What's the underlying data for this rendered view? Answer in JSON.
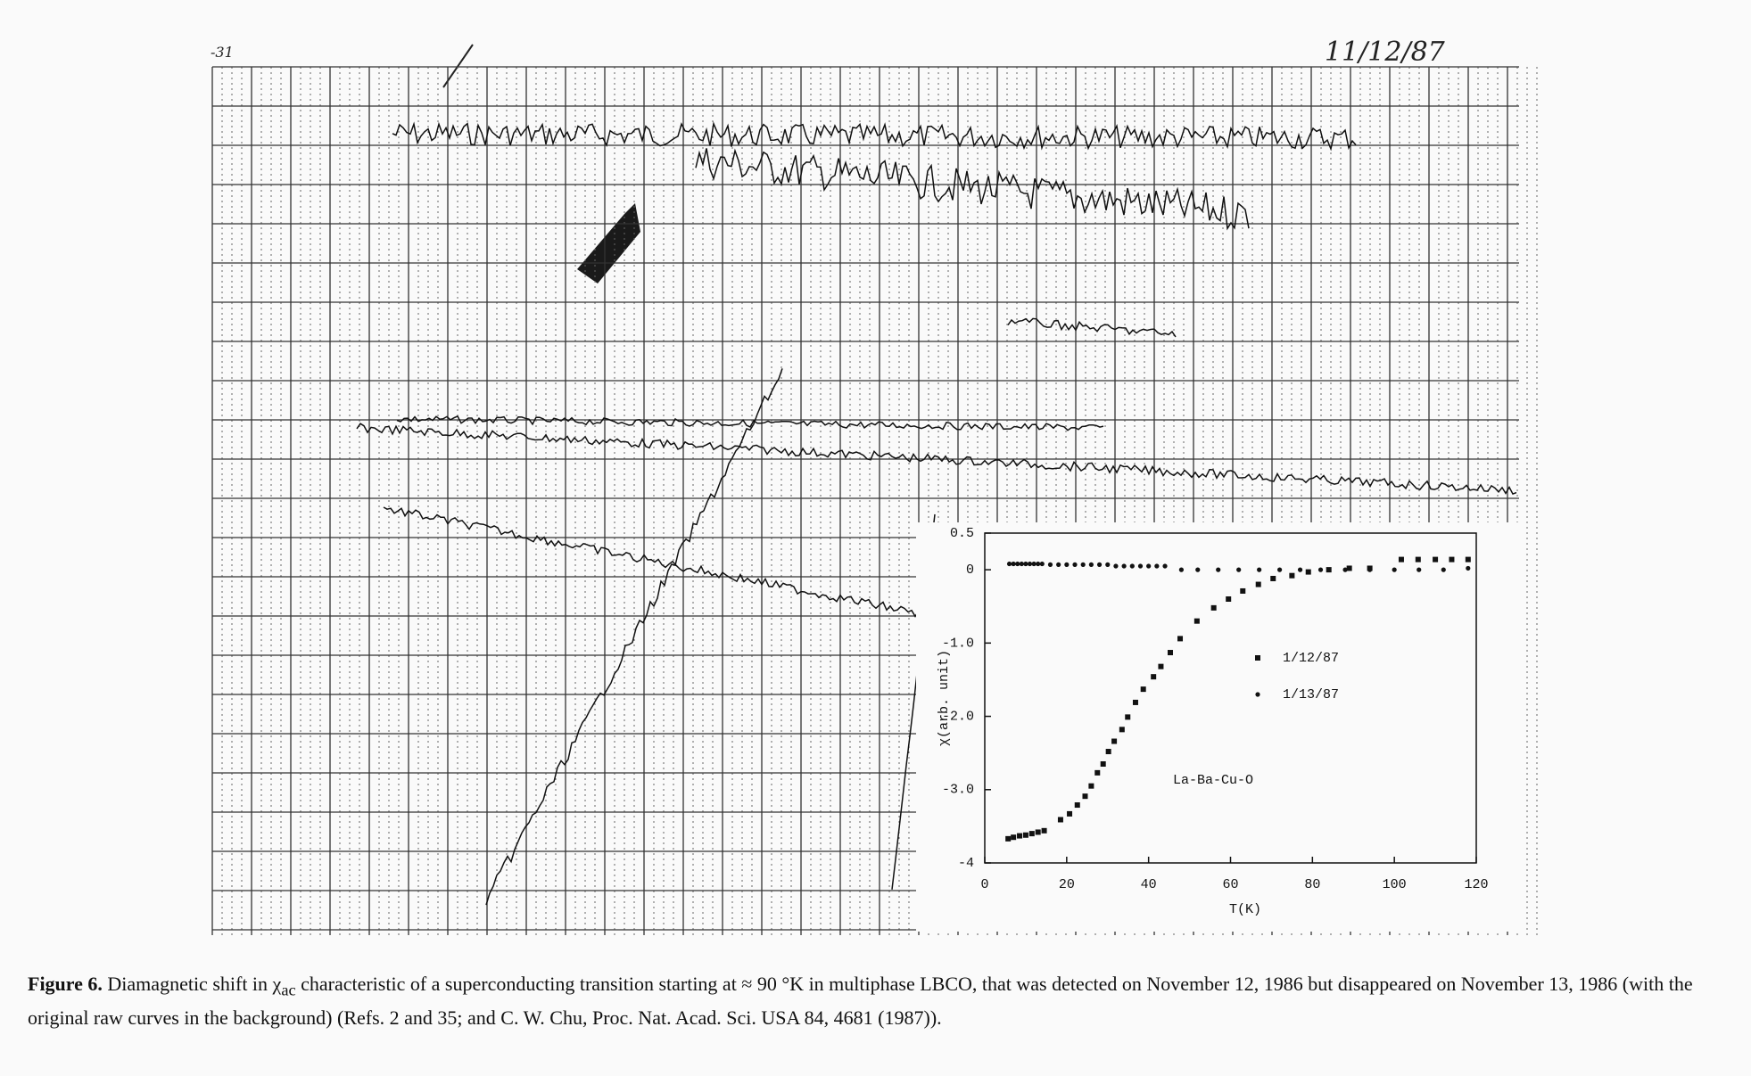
{
  "chart_data": {
    "type": "scatter",
    "x_label": "T(K)",
    "y_label": "χ(arb. unit)",
    "annotation": "La-Ba-Cu-O",
    "xlim": [
      0,
      120
    ],
    "xticks": [
      0,
      20,
      40,
      60,
      80,
      100,
      120
    ],
    "ylim": [
      -4,
      0.5
    ],
    "yticks": [
      -4,
      {
        "value": -3,
        "label": "-3.0"
      },
      {
        "value": -2,
        "label": "-2.0"
      },
      {
        "value": -1,
        "label": "-1.0"
      },
      0,
      0.5
    ],
    "series": [
      {
        "name": "1/12/87",
        "marker": "square",
        "color": "#111111",
        "x": [
          5.7,
          7,
          8.5,
          10,
          11.5,
          13,
          14.5,
          18.5,
          20.7,
          22.6,
          24.5,
          26,
          27.5,
          28.9,
          30.2,
          31.6,
          33.5,
          34.9,
          36.8,
          38.7,
          41.2,
          43,
          45.3,
          47.7,
          51.8,
          55.9,
          59.5,
          63,
          66.8,
          70.4,
          75,
          79,
          84,
          89,
          94,
          101.7,
          105.8,
          110,
          114,
          118
        ],
        "values": [
          -3.67,
          -3.65,
          -3.63,
          -3.62,
          -3.6,
          -3.58,
          -3.56,
          -3.41,
          -3.33,
          -3.21,
          -3.09,
          -2.95,
          -2.77,
          -2.65,
          -2.48,
          -2.34,
          -2.18,
          -2.01,
          -1.81,
          -1.63,
          -1.46,
          -1.32,
          -1.13,
          -0.94,
          -0.7,
          -0.52,
          -0.4,
          -0.29,
          -0.2,
          -0.12,
          -0.08,
          -0.03,
          0,
          0.02,
          0.02,
          0.14,
          0.14,
          0.14,
          0.14,
          0.14
        ]
      },
      {
        "name": "1/13/87",
        "marker": "dot",
        "color": "#111111",
        "x": [
          6,
          7,
          8,
          9,
          10,
          11,
          12,
          13,
          14,
          16,
          18,
          20,
          22,
          24,
          26,
          28,
          30,
          32,
          34,
          36,
          38,
          40,
          42,
          44,
          48,
          52,
          57,
          62,
          67,
          72,
          77,
          82,
          88,
          94,
          100,
          106,
          112,
          118
        ],
        "values": [
          0.08,
          0.08,
          0.08,
          0.08,
          0.08,
          0.08,
          0.08,
          0.08,
          0.08,
          0.07,
          0.07,
          0.07,
          0.07,
          0.07,
          0.07,
          0.07,
          0.07,
          0.05,
          0.05,
          0.05,
          0.05,
          0.05,
          0.05,
          0.05,
          0,
          0,
          0,
          0,
          0,
          0,
          0,
          0,
          0,
          0,
          0,
          0,
          0,
          0.02
        ]
      }
    ]
  },
  "handwriting": {
    "date": "11/12/87",
    "corner": "-31"
  },
  "caption": {
    "label": "Figure 6.",
    "before": "Diamagnetic shift in χ",
    "sub": "ac",
    "after": "characteristic of a superconducting transition starting at ≈ 90 °K in multiphase LBCO, that was detected on November 12, 1986 but disappeared on November 13, 1986 (with the original raw curves in the background) (Refs. 2 and 35; and C. W. Chu, Proc. Nat. Acad. Sci. USA 84, 4681 (1987))."
  }
}
